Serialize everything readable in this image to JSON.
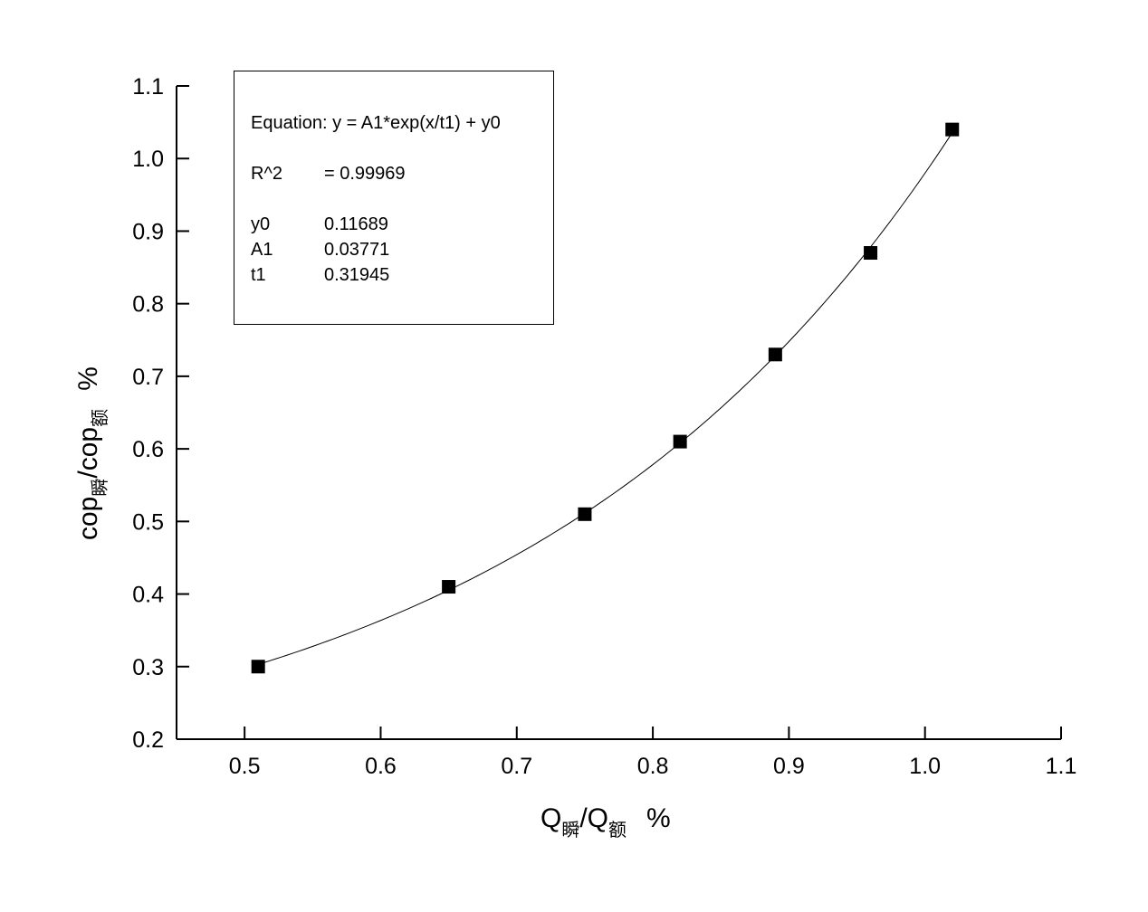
{
  "chart_data": {
    "type": "scatter",
    "title": "",
    "xlabel": {
      "base": "Q",
      "sub1": "瞬",
      "mid": "/Q",
      "sub2": "额",
      "unit": "%"
    },
    "ylabel": {
      "base": "cop",
      "sub1": "瞬",
      "mid": "/cop",
      "sub2": "额",
      "unit": "%"
    },
    "xlim": [
      0.45,
      1.1
    ],
    "ylim": [
      0.2,
      1.1
    ],
    "x_ticks": [
      "0.5",
      "0.6",
      "0.7",
      "0.8",
      "0.9",
      "1.0",
      "1.1"
    ],
    "y_ticks": [
      "0.2",
      "0.3",
      "0.4",
      "0.5",
      "0.6",
      "0.7",
      "0.8",
      "0.9",
      "1.0",
      "1.1"
    ],
    "series": [
      {
        "marker": "square",
        "color": "#000000",
        "x": [
          0.51,
          0.65,
          0.75,
          0.82,
          0.89,
          0.96,
          1.02
        ],
        "y": [
          0.3,
          0.41,
          0.51,
          0.61,
          0.73,
          0.87,
          1.04
        ]
      }
    ],
    "fit": {
      "color": "#000000",
      "x_range": [
        0.51,
        1.02
      ],
      "y0": 0.11689,
      "A1": 0.03771,
      "t1": 0.31945
    },
    "annotation": {
      "equation": "Equation: y = A1*exp(x/t1) + y0",
      "r2_label": "R^2",
      "r2_value": "=  0.99969",
      "params": [
        {
          "name": "y0",
          "value": "0.11689"
        },
        {
          "name": "A1",
          "value": "0.03771"
        },
        {
          "name": "t1",
          "value": "0.31945"
        }
      ]
    },
    "grid": false,
    "legend": "none"
  }
}
